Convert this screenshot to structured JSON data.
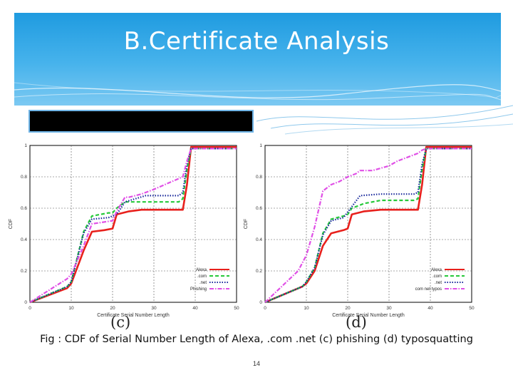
{
  "slide": {
    "title": "B.Certificate Analysis",
    "caption": "Fig : CDF of Serial Number Length of Alexa, .com .net (c) phishing (d) typosquatting",
    "page_number": "14",
    "banner_color": "#2aa3e6"
  },
  "chart_data": [
    {
      "type": "line",
      "panel_label": "(c)",
      "xlabel": "Certificate Serial Number Length",
      "ylabel": "CDF",
      "xlim": [
        0,
        50
      ],
      "ylim": [
        0,
        1
      ],
      "xticks": [
        "0",
        "10",
        "20",
        "30",
        "40",
        "50"
      ],
      "yticks": [
        "0",
        "0.2",
        "0.4",
        "0.6",
        "0.8",
        "1"
      ],
      "grid": true,
      "legend_position": "bottom-right",
      "series": [
        {
          "name": "Alexa",
          "color": "#e8201c",
          "dash": "solid",
          "x": [
            0,
            9,
            10,
            13,
            15,
            18,
            20,
            21,
            24,
            27,
            30,
            37,
            38,
            39,
            50
          ],
          "y": [
            0,
            0.09,
            0.12,
            0.33,
            0.45,
            0.46,
            0.47,
            0.56,
            0.58,
            0.59,
            0.59,
            0.59,
            0.75,
            0.99,
            0.99
          ]
        },
        {
          "name": ".com",
          "color": "#26c93a",
          "dash": "dashed",
          "x": [
            0,
            9,
            10,
            13,
            15,
            19,
            20,
            21,
            23,
            28,
            36,
            37,
            38,
            39,
            50
          ],
          "y": [
            0,
            0.1,
            0.13,
            0.45,
            0.55,
            0.57,
            0.57,
            0.6,
            0.64,
            0.64,
            0.64,
            0.66,
            0.85,
            0.98,
            0.98
          ]
        },
        {
          "name": ".net",
          "color": "#1a2a9c",
          "dash": "dotted",
          "x": [
            0,
            9,
            10,
            13,
            15,
            19,
            21,
            23,
            28,
            36,
            37,
            38,
            39,
            50
          ],
          "y": [
            0,
            0.1,
            0.13,
            0.44,
            0.53,
            0.54,
            0.56,
            0.64,
            0.68,
            0.68,
            0.7,
            0.88,
            0.98,
            0.98
          ]
        },
        {
          "name": "Phishing",
          "color": "#e04fe6",
          "dash": "dashdot",
          "x": [
            0,
            9,
            10,
            13,
            15,
            20,
            21,
            23,
            24,
            27,
            30,
            37,
            38,
            39,
            50
          ],
          "y": [
            0,
            0.15,
            0.18,
            0.36,
            0.5,
            0.52,
            0.58,
            0.67,
            0.67,
            0.69,
            0.72,
            0.8,
            0.9,
            0.98,
            0.98
          ]
        }
      ]
    },
    {
      "type": "line",
      "panel_label": "(d)",
      "xlabel": "Certificate Serial Number Length",
      "ylabel": "CDF",
      "xlim": [
        0,
        50
      ],
      "ylim": [
        0,
        1
      ],
      "xticks": [
        "0",
        "10",
        "20",
        "30",
        "40",
        "50"
      ],
      "yticks": [
        "0",
        "0.2",
        "0.4",
        "0.6",
        "0.8",
        "1"
      ],
      "grid": true,
      "legend_position": "bottom-right",
      "series": [
        {
          "name": "Alexa",
          "color": "#e8201c",
          "dash": "solid",
          "x": [
            0,
            9,
            10,
            12,
            14,
            16,
            19,
            20,
            21,
            24,
            28,
            37,
            38,
            39,
            50
          ],
          "y": [
            0,
            0.1,
            0.12,
            0.2,
            0.36,
            0.44,
            0.46,
            0.47,
            0.56,
            0.58,
            0.59,
            0.59,
            0.75,
            0.99,
            0.99
          ]
        },
        {
          "name": ".com",
          "color": "#26c93a",
          "dash": "dashed",
          "x": [
            0,
            9,
            10,
            12,
            14,
            16,
            19,
            20,
            21,
            24,
            28,
            36,
            37,
            38,
            39,
            50
          ],
          "y": [
            0,
            0.1,
            0.13,
            0.22,
            0.44,
            0.53,
            0.55,
            0.56,
            0.6,
            0.63,
            0.65,
            0.65,
            0.66,
            0.85,
            0.98,
            0.98
          ]
        },
        {
          "name": ".net",
          "color": "#1a2a9c",
          "dash": "dotted",
          "x": [
            0,
            9,
            10,
            12,
            14,
            16,
            19,
            21,
            23,
            28,
            36,
            37,
            38,
            39,
            50
          ],
          "y": [
            0,
            0.1,
            0.13,
            0.22,
            0.43,
            0.52,
            0.54,
            0.61,
            0.68,
            0.69,
            0.69,
            0.7,
            0.88,
            0.98,
            0.98
          ]
        },
        {
          "name": "com net typos",
          "color": "#e04fe6",
          "dash": "dashdot",
          "x": [
            0,
            8,
            10,
            12,
            14,
            16,
            18,
            20,
            22,
            23,
            26,
            30,
            32,
            37,
            38,
            39,
            50
          ],
          "y": [
            0,
            0.2,
            0.3,
            0.48,
            0.71,
            0.75,
            0.77,
            0.8,
            0.82,
            0.84,
            0.84,
            0.87,
            0.9,
            0.95,
            0.97,
            0.98,
            0.98
          ]
        }
      ]
    }
  ]
}
